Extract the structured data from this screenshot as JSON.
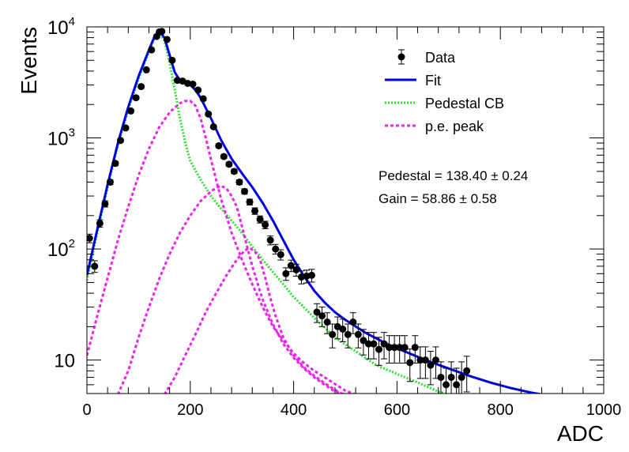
{
  "chart_data": {
    "type": "scatter",
    "title": "",
    "xlabel": "ADC",
    "ylabel": "Events",
    "xlim": [
      0,
      1000
    ],
    "ylim": [
      5,
      10000
    ],
    "yscale": "log",
    "grid": false,
    "legend_position": "top-right",
    "x_ticks": [
      {
        "value": 0,
        "label": "0"
      },
      {
        "value": 200,
        "label": "200"
      },
      {
        "value": 400,
        "label": "400"
      },
      {
        "value": 600,
        "label": "600"
      },
      {
        "value": 800,
        "label": "800"
      },
      {
        "value": 1000,
        "label": "1000"
      }
    ],
    "y_ticks": [
      {
        "value": 10,
        "base": "10",
        "exp": ""
      },
      {
        "value": 100,
        "base": "10",
        "exp": "2"
      },
      {
        "value": 1000,
        "base": "10",
        "exp": "3"
      },
      {
        "value": 10000,
        "base": "10",
        "exp": "4"
      }
    ],
    "legend": [
      {
        "label": "Data",
        "style": "marker",
        "color": "#000000"
      },
      {
        "label": "Fit",
        "style": "solid",
        "color": "#0000e6"
      },
      {
        "label": "Pedestal CB",
        "style": "dotted",
        "color": "#33dd33"
      },
      {
        "label": "p.e. peak",
        "style": "dashed",
        "color": "#ee22ee"
      }
    ],
    "annotations": [
      {
        "text": "Pedestal = 138.40 ± 0.24"
      },
      {
        "text": "Gain = 58.86 ± 0.58"
      }
    ],
    "series": [
      {
        "name": "Data",
        "kind": "points_with_errors",
        "color": "#000000",
        "points": [
          [
            5,
            125
          ],
          [
            15,
            70
          ],
          [
            25,
            170
          ],
          [
            35,
            255
          ],
          [
            45,
            400
          ],
          [
            55,
            590
          ],
          [
            65,
            950
          ],
          [
            75,
            1230
          ],
          [
            85,
            1750
          ],
          [
            95,
            2300
          ],
          [
            105,
            2900
          ],
          [
            115,
            4100
          ],
          [
            125,
            6200
          ],
          [
            135,
            8200
          ],
          [
            140,
            9000
          ],
          [
            145,
            9100
          ],
          [
            155,
            7700
          ],
          [
            165,
            5000
          ],
          [
            175,
            3300
          ],
          [
            185,
            3250
          ],
          [
            195,
            3100
          ],
          [
            205,
            3050
          ],
          [
            215,
            2700
          ],
          [
            225,
            2250
          ],
          [
            235,
            1640
          ],
          [
            245,
            1260
          ],
          [
            255,
            850
          ],
          [
            265,
            680
          ],
          [
            275,
            580
          ],
          [
            285,
            500
          ],
          [
            295,
            400
          ],
          [
            305,
            330
          ],
          [
            315,
            265
          ],
          [
            325,
            220
          ],
          [
            335,
            185
          ],
          [
            345,
            165
          ],
          [
            355,
            120
          ],
          [
            365,
            100
          ],
          [
            375,
            89
          ],
          [
            385,
            60
          ],
          [
            395,
            71
          ],
          [
            405,
            65
          ],
          [
            415,
            56
          ],
          [
            425,
            57
          ],
          [
            435,
            58
          ],
          [
            445,
            27
          ],
          [
            455,
            25
          ],
          [
            465,
            22
          ],
          [
            475,
            17
          ],
          [
            485,
            20
          ],
          [
            495,
            19
          ],
          [
            505,
            17
          ],
          [
            515,
            22
          ],
          [
            525,
            17
          ],
          [
            535,
            15
          ],
          [
            545,
            14
          ],
          [
            555,
            14
          ],
          [
            565,
            12.5
          ],
          [
            575,
            14
          ],
          [
            585,
            13
          ],
          [
            595,
            13
          ],
          [
            605,
            13
          ],
          [
            615,
            13
          ],
          [
            625,
            9.5
          ],
          [
            635,
            13
          ],
          [
            645,
            10
          ],
          [
            655,
            10
          ],
          [
            665,
            9
          ],
          [
            675,
            10
          ],
          [
            685,
            7
          ],
          [
            695,
            6
          ],
          [
            705,
            7
          ],
          [
            715,
            6
          ],
          [
            725,
            7
          ],
          [
            735,
            8
          ]
        ]
      },
      {
        "name": "Fit",
        "kind": "line",
        "color": "#0000e6",
        "points": [
          [
            0,
            58
          ],
          [
            20,
            150
          ],
          [
            40,
            380
          ],
          [
            60,
            900
          ],
          [
            80,
            1900
          ],
          [
            100,
            3600
          ],
          [
            120,
            6200
          ],
          [
            130,
            8000
          ],
          [
            140,
            9100
          ],
          [
            150,
            8000
          ],
          [
            160,
            5600
          ],
          [
            170,
            3900
          ],
          [
            180,
            3300
          ],
          [
            190,
            3150
          ],
          [
            200,
            3000
          ],
          [
            210,
            2700
          ],
          [
            220,
            2300
          ],
          [
            240,
            1500
          ],
          [
            260,
            950
          ],
          [
            280,
            650
          ],
          [
            300,
            480
          ],
          [
            320,
            360
          ],
          [
            340,
            260
          ],
          [
            360,
            180
          ],
          [
            380,
            120
          ],
          [
            400,
            80
          ],
          [
            420,
            57
          ],
          [
            440,
            42
          ],
          [
            460,
            33
          ],
          [
            480,
            27
          ],
          [
            500,
            23
          ],
          [
            540,
            17.5
          ],
          [
            580,
            14
          ],
          [
            620,
            11.7
          ],
          [
            660,
            9.8
          ],
          [
            700,
            8.4
          ],
          [
            740,
            7.2
          ],
          [
            780,
            6.3
          ],
          [
            820,
            5.6
          ],
          [
            860,
            5.1
          ],
          [
            880,
            4.9
          ]
        ]
      },
      {
        "name": "Pedestal CB",
        "kind": "line",
        "color": "#33dd33",
        "points": [
          [
            0,
            52
          ],
          [
            20,
            140
          ],
          [
            40,
            360
          ],
          [
            60,
            860
          ],
          [
            80,
            1800
          ],
          [
            100,
            3400
          ],
          [
            120,
            6000
          ],
          [
            130,
            7800
          ],
          [
            140,
            9000
          ],
          [
            150,
            7500
          ],
          [
            160,
            4800
          ],
          [
            170,
            2700
          ],
          [
            180,
            1500
          ],
          [
            190,
            920
          ],
          [
            200,
            620
          ],
          [
            220,
            420
          ],
          [
            240,
            300
          ],
          [
            260,
            230
          ],
          [
            280,
            180
          ],
          [
            300,
            140
          ],
          [
            320,
            105
          ],
          [
            340,
            80
          ],
          [
            360,
            62
          ],
          [
            380,
            48
          ],
          [
            400,
            37
          ],
          [
            440,
            24
          ],
          [
            480,
            16
          ],
          [
            520,
            12
          ],
          [
            560,
            9
          ],
          [
            600,
            7.5
          ],
          [
            640,
            6.3
          ],
          [
            680,
            5.2
          ],
          [
            700,
            4.9
          ]
        ]
      },
      {
        "name": "p.e. peak 1",
        "kind": "line",
        "color": "#ee22ee",
        "points": [
          [
            0,
            11
          ],
          [
            20,
            25
          ],
          [
            40,
            55
          ],
          [
            60,
            120
          ],
          [
            80,
            240
          ],
          [
            100,
            460
          ],
          [
            120,
            800
          ],
          [
            140,
            1250
          ],
          [
            160,
            1700
          ],
          [
            180,
            2050
          ],
          [
            190,
            2150
          ],
          [
            200,
            2150
          ],
          [
            210,
            1950
          ],
          [
            220,
            1500
          ],
          [
            230,
            1000
          ],
          [
            240,
            640
          ],
          [
            250,
            420
          ],
          [
            260,
            280
          ],
          [
            280,
            140
          ],
          [
            300,
            80
          ],
          [
            320,
            48
          ],
          [
            340,
            30
          ],
          [
            360,
            20
          ],
          [
            380,
            15
          ],
          [
            400,
            11.5
          ],
          [
            420,
            9.4
          ],
          [
            440,
            8
          ],
          [
            460,
            7
          ],
          [
            480,
            6.1
          ],
          [
            500,
            5.3
          ],
          [
            520,
            4.9
          ]
        ]
      },
      {
        "name": "p.e. peak 2",
        "kind": "line",
        "color": "#ee22ee",
        "points": [
          [
            60,
            4.9
          ],
          [
            80,
            8
          ],
          [
            100,
            16
          ],
          [
            120,
            30
          ],
          [
            140,
            54
          ],
          [
            160,
            90
          ],
          [
            180,
            140
          ],
          [
            200,
            200
          ],
          [
            220,
            270
          ],
          [
            240,
            330
          ],
          [
            250,
            355
          ],
          [
            260,
            370
          ],
          [
            270,
            350
          ],
          [
            280,
            300
          ],
          [
            290,
            240
          ],
          [
            300,
            160
          ],
          [
            310,
            105
          ],
          [
            320,
            70
          ],
          [
            340,
            35
          ],
          [
            360,
            21
          ],
          [
            380,
            14
          ],
          [
            400,
            10.5
          ],
          [
            420,
            8.4
          ],
          [
            440,
            7
          ],
          [
            460,
            6
          ],
          [
            480,
            5.2
          ],
          [
            500,
            4.9
          ]
        ]
      },
      {
        "name": "p.e. peak 3",
        "kind": "line",
        "color": "#ee22ee",
        "points": [
          [
            150,
            4.9
          ],
          [
            170,
            7
          ],
          [
            190,
            11
          ],
          [
            210,
            17
          ],
          [
            230,
            27
          ],
          [
            250,
            40
          ],
          [
            270,
            58
          ],
          [
            290,
            80
          ],
          [
            305,
            97
          ],
          [
            315,
            102
          ],
          [
            325,
            95
          ],
          [
            335,
            80
          ],
          [
            345,
            55
          ],
          [
            355,
            36
          ],
          [
            365,
            25
          ],
          [
            380,
            16
          ],
          [
            400,
            11
          ],
          [
            420,
            8.6
          ],
          [
            440,
            7.2
          ],
          [
            460,
            6.2
          ],
          [
            480,
            5.4
          ],
          [
            495,
            4.9
          ]
        ]
      }
    ]
  }
}
